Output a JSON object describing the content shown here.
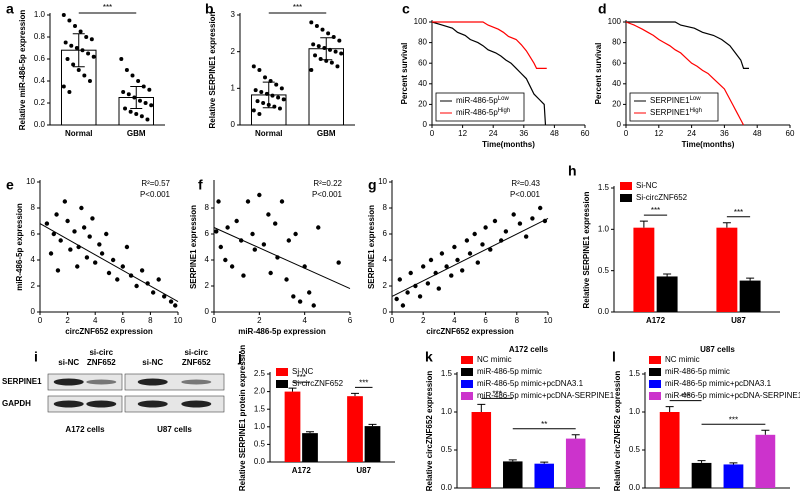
{
  "chart_data": [
    {
      "panel": "a",
      "type": "dot-bar",
      "y_label": "Relative miR-486-5p expression",
      "categories": [
        "Normal",
        "GBM"
      ],
      "values": [
        0.68,
        0.25
      ],
      "errors": [
        0.15,
        0.1
      ],
      "points": [
        [
          1.0,
          0.95,
          0.9,
          0.85,
          0.8,
          0.78,
          0.75,
          0.72,
          0.7,
          0.68,
          0.65,
          0.62,
          0.6,
          0.55,
          0.5,
          0.45,
          0.4,
          0.35,
          0.3
        ],
        [
          0.6,
          0.5,
          0.45,
          0.4,
          0.35,
          0.32,
          0.3,
          0.28,
          0.25,
          0.22,
          0.2,
          0.18,
          0.15,
          0.12,
          0.1,
          0.08,
          0.05
        ]
      ],
      "significance": [
        "***"
      ],
      "ylim": [
        0,
        1
      ],
      "yticks": [
        {
          "value": 0,
          "label": "0.0"
        },
        0.2,
        0.4,
        0.6,
        0.8,
        {
          "value": 1,
          "label": "1.0"
        }
      ],
      "color": "#000000"
    },
    {
      "panel": "b",
      "type": "dot-bar",
      "y_label": "Relative SERPINE1 expression",
      "categories": [
        "Normal",
        "GBM"
      ],
      "values": [
        0.82,
        2.08
      ],
      "errors": [
        0.35,
        0.3
      ],
      "points": [
        [
          1.6,
          1.5,
          1.3,
          1.2,
          1.1,
          1.0,
          0.95,
          0.9,
          0.85,
          0.8,
          0.75,
          0.7,
          0.65,
          0.6,
          0.55,
          0.5,
          0.45,
          0.4,
          0.3
        ],
        [
          2.8,
          2.7,
          2.6,
          2.5,
          2.4,
          2.3,
          2.2,
          2.15,
          2.1,
          2.05,
          2.0,
          1.95,
          1.9,
          1.8,
          1.75,
          1.7,
          1.6,
          1.5
        ]
      ],
      "significance": [
        "***"
      ],
      "ylim": [
        0,
        3
      ],
      "yticks": [
        0,
        1,
        2,
        3
      ],
      "color": "#000000"
    },
    {
      "panel": "c",
      "type": "survival",
      "x_label": "Time(months)",
      "y_label": "Percent survival",
      "series": [
        {
          "name": "miR-486-5p",
          "name_sup": "Low",
          "color": "#000000",
          "x": [
            0,
            4,
            8,
            10,
            13,
            15,
            18,
            20,
            22,
            25,
            27,
            29,
            31,
            33,
            35,
            37,
            38,
            40,
            42,
            44,
            44.5
          ],
          "values": [
            100,
            97,
            94,
            90,
            87,
            83,
            80,
            77,
            73,
            70,
            67,
            63,
            60,
            55,
            50,
            45,
            40,
            30,
            25,
            20,
            0
          ]
        },
        {
          "name": "miR-486-5p",
          "name_sup": "High",
          "color": "#ff0000",
          "x": [
            0,
            20,
            22,
            26,
            28,
            30,
            33,
            35,
            37,
            38,
            40,
            41,
            45
          ],
          "values": [
            100,
            100,
            97,
            93,
            90,
            86,
            83,
            78,
            72,
            68,
            60,
            55,
            55
          ]
        }
      ],
      "xlim": [
        0,
        60
      ],
      "xticks": [
        0,
        12,
        24,
        36,
        48,
        60
      ],
      "ylim": [
        0,
        100
      ],
      "yticks": [
        0,
        20,
        40,
        60,
        80,
        100
      ]
    },
    {
      "panel": "d",
      "type": "survival",
      "x_label": "Time(months)",
      "y_label": "Percent survival",
      "series": [
        {
          "name": "SERPINE1",
          "name_sup": "Low",
          "color": "#000000",
          "x": [
            0,
            18,
            20,
            25,
            28,
            32,
            35,
            38,
            40,
            42,
            43,
            45
          ],
          "values": [
            100,
            100,
            97,
            94,
            90,
            87,
            83,
            77,
            70,
            63,
            55,
            55
          ]
        },
        {
          "name": "SERPINE1",
          "name_sup": "High",
          "color": "#ff0000",
          "x": [
            0,
            3,
            6,
            8,
            10,
            12,
            14,
            16,
            18,
            20,
            22,
            24,
            26,
            28,
            30,
            32,
            34,
            36,
            37,
            38,
            39,
            40,
            41,
            42,
            43
          ],
          "values": [
            100,
            97,
            93,
            90,
            87,
            83,
            80,
            77,
            73,
            70,
            65,
            60,
            57,
            53,
            50,
            45,
            40,
            35,
            30,
            25,
            20,
            15,
            10,
            5,
            0
          ]
        }
      ],
      "xlim": [
        0,
        60
      ],
      "xticks": [
        0,
        12,
        24,
        36,
        48,
        60
      ],
      "ylim": [
        0,
        100
      ],
      "yticks": [
        0,
        20,
        40,
        60,
        80,
        100
      ]
    },
    {
      "panel": "e",
      "type": "scatter",
      "x_label": "circZNF652 expression",
      "y_label": "miR-486-5p expression",
      "x": [
        0.5,
        0.8,
        1,
        1.2,
        1.3,
        1.5,
        1.8,
        2,
        2.2,
        2.5,
        2.7,
        2.8,
        3,
        3.2,
        3.4,
        3.6,
        3.8,
        4,
        4.3,
        4.5,
        4.8,
        5,
        5.3,
        5.6,
        6,
        6.3,
        6.6,
        7,
        7.4,
        7.8,
        8.2,
        8.6,
        9,
        9.5,
        9.8
      ],
      "values": [
        6.8,
        4.5,
        6,
        7.5,
        3.2,
        5.5,
        8.5,
        7,
        4.8,
        6.2,
        3.5,
        5,
        8,
        6.5,
        4.2,
        5.8,
        7.2,
        3.8,
        5.2,
        4.5,
        6,
        3,
        4,
        2.5,
        3.5,
        5,
        2.8,
        2,
        3.2,
        2.2,
        1.5,
        2.5,
        1.2,
        0.8,
        0.5
      ],
      "fit": {
        "x": [
          0,
          10
        ],
        "values": [
          6.8,
          0.8
        ]
      },
      "annotations": [
        "R²=0.57",
        "P<0.001"
      ],
      "xlim": [
        0,
        10
      ],
      "xticks": [
        0,
        2,
        4,
        6,
        8,
        10
      ],
      "ylim": [
        0,
        10
      ],
      "yticks": [
        0,
        2,
        4,
        6,
        8,
        10
      ],
      "color": "#000000"
    },
    {
      "panel": "f",
      "type": "scatter",
      "x_label": "miR-486-5p expression",
      "y_label": "SERPINE1 expression",
      "x": [
        0.1,
        0.2,
        0.3,
        0.5,
        0.6,
        0.8,
        1,
        1.2,
        1.3,
        1.5,
        1.7,
        1.8,
        2,
        2.2,
        2.4,
        2.5,
        2.7,
        2.8,
        3,
        3.2,
        3.3,
        3.5,
        3.6,
        3.8,
        4,
        4.2,
        4.4,
        4.6,
        5.5
      ],
      "values": [
        6.2,
        8.5,
        5,
        4,
        6.5,
        3.5,
        7,
        5.5,
        2.8,
        8.5,
        6,
        4.8,
        9,
        5.2,
        7.5,
        3,
        6.8,
        4.2,
        8.5,
        2.5,
        5.5,
        1.2,
        6,
        0.8,
        3.5,
        1.5,
        0.5,
        6.5,
        3.8
      ],
      "fit": {
        "x": [
          0,
          6
        ],
        "values": [
          6.5,
          1.8
        ]
      },
      "annotations": [
        "R²=0.22",
        "P<0.001"
      ],
      "xlim": [
        0,
        6
      ],
      "xticks": [
        0,
        2,
        4,
        6
      ],
      "ylim": [
        0,
        10
      ],
      "yticks": [
        0,
        2,
        4,
        6,
        8
      ],
      "color": "#000000"
    },
    {
      "panel": "g",
      "type": "scatter",
      "x_label": "circZNF652 expression",
      "y_label": "SERPINE1 expression",
      "x": [
        0.3,
        0.5,
        0.7,
        1,
        1.2,
        1.5,
        1.8,
        2,
        2.3,
        2.5,
        2.8,
        3,
        3.2,
        3.5,
        3.8,
        4,
        4.2,
        4.5,
        4.8,
        5,
        5.3,
        5.5,
        5.8,
        6,
        6.3,
        6.6,
        7,
        7.3,
        7.8,
        8.2,
        8.6,
        9,
        9.5,
        9.8
      ],
      "values": [
        1,
        2.5,
        0.5,
        1.5,
        3,
        2,
        1.2,
        3.5,
        2.2,
        4,
        3,
        1.8,
        4.5,
        3.5,
        2.8,
        5,
        4,
        3.2,
        5.5,
        4.5,
        6,
        3.8,
        5.2,
        6.5,
        4.8,
        7,
        5.5,
        6.2,
        7.5,
        6.8,
        5.8,
        7.2,
        8,
        7
      ],
      "fit": {
        "x": [
          0,
          10
        ],
        "values": [
          1.2,
          7.2
        ]
      },
      "annotations": [
        "R²=0.43",
        "P<0.001"
      ],
      "xlim": [
        0,
        10
      ],
      "xticks": [
        0,
        2,
        4,
        6,
        8,
        10
      ],
      "ylim": [
        0,
        10
      ],
      "yticks": [
        0,
        2,
        4,
        6,
        8,
        10
      ],
      "color": "#000000"
    },
    {
      "panel": "h",
      "type": "grouped-bar",
      "y_label": "Relative SERPINE1 expression",
      "categories": [
        "A172",
        "U87"
      ],
      "series": [
        {
          "name": "Si-NC",
          "color": "#ff0000",
          "values": [
            1.02,
            1.02
          ],
          "errors": [
            0.08,
            0.06
          ]
        },
        {
          "name": "Si-circZNF652",
          "color": "#000000",
          "values": [
            0.43,
            0.38
          ],
          "errors": [
            0.03,
            0.03
          ]
        }
      ],
      "significance": [
        "***",
        "***"
      ],
      "ylim": [
        0,
        1.5
      ],
      "yticks": [
        {
          "value": 0,
          "label": "0.0"
        },
        0.5,
        {
          "value": 1,
          "label": "1.0"
        },
        1.5
      ]
    },
    {
      "panel": "j",
      "type": "grouped-bar",
      "y_label": "Relative SERPINE1 protein expression",
      "categories": [
        "A172",
        "U87"
      ],
      "series": [
        {
          "name": "Si-NC",
          "color": "#ff0000",
          "values": [
            2.0,
            1.87
          ],
          "errors": [
            0.1,
            0.08
          ]
        },
        {
          "name": "Si-circZNF652",
          "color": "#000000",
          "values": [
            0.82,
            1.02
          ],
          "errors": [
            0.04,
            0.05
          ]
        }
      ],
      "significance": [
        "***",
        "***"
      ],
      "ylim": [
        0,
        2.5
      ],
      "yticks": [
        {
          "value": 0,
          "label": "0.0"
        },
        0.5,
        {
          "value": 1,
          "label": "1.0"
        },
        1.5,
        {
          "value": 2,
          "label": "2.0"
        },
        2.5
      ]
    },
    {
      "panel": "k",
      "type": "grouped-bar",
      "title": "A172 cells",
      "y_label": "Relative circZNF652 expression",
      "categories": [
        null
      ],
      "series": [
        {
          "name": "NC mimic",
          "color": "#ff0000",
          "values": [
            1.0
          ],
          "errors": [
            0.1
          ]
        },
        {
          "name": "miR-486-5p mimic",
          "color": "#000000",
          "values": [
            0.35
          ],
          "errors": [
            0.02
          ]
        },
        {
          "name": "miR-486-5p mimic+pcDNA3.1",
          "color": "#0000ff",
          "values": [
            0.32
          ],
          "errors": [
            0.02
          ]
        },
        {
          "name": "miR-486-5p mimic+pcDNA-SERPINE1",
          "color": "#cc33cc",
          "values": [
            0.65
          ],
          "errors": [
            0.05
          ]
        }
      ],
      "significance": [
        "***",
        "**"
      ],
      "ylim": [
        0,
        1.5
      ],
      "yticks": [
        {
          "value": 0,
          "label": "0.0"
        },
        0.5,
        {
          "value": 1,
          "label": "1.0"
        },
        1.5
      ]
    },
    {
      "panel": "l",
      "type": "grouped-bar",
      "title": "U87 cells",
      "y_label": "Relative circZNF652 expression",
      "categories": [
        null
      ],
      "series": [
        {
          "name": "NC mimic",
          "color": "#ff0000",
          "values": [
            1.0
          ],
          "errors": [
            0.07
          ]
        },
        {
          "name": "miR-486-5p mimic",
          "color": "#000000",
          "values": [
            0.33
          ],
          "errors": [
            0.03
          ]
        },
        {
          "name": "miR-486-5p mimic+pcDNA3.1",
          "color": "#0000ff",
          "values": [
            0.31
          ],
          "errors": [
            0.02
          ]
        },
        {
          "name": "miR-486-5p mimic+pcDNA-SERPINE1",
          "color": "#cc33cc",
          "values": [
            0.7
          ],
          "errors": [
            0.06
          ]
        }
      ],
      "significance": [
        "***",
        "***"
      ],
      "ylim": [
        0,
        1.5
      ],
      "yticks": [
        {
          "value": 0,
          "label": "0.0"
        },
        0.5,
        {
          "value": 1,
          "label": "1.0"
        },
        1.5
      ]
    }
  ],
  "blot": {
    "panel": "i",
    "lanes": [
      [
        "si-NC"
      ],
      [
        "si-circ",
        "ZNF652"
      ],
      [
        "si-NC"
      ],
      [
        "si-circ",
        "ZNF652"
      ]
    ],
    "proteins": [
      "SERPINE1",
      "GAPDH"
    ],
    "cell_lines": [
      "A172 cells",
      "U87 cells"
    ]
  }
}
